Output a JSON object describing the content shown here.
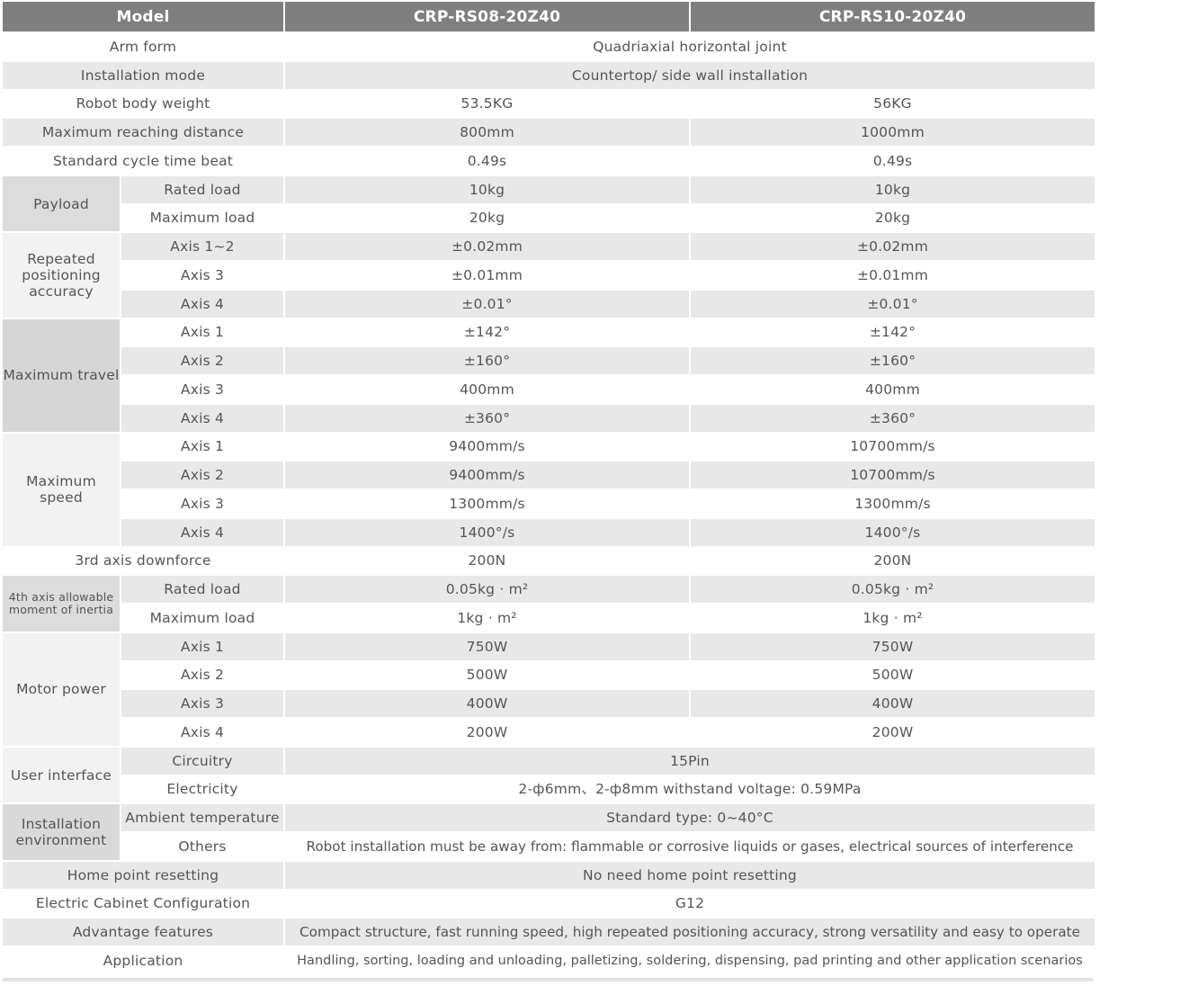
{
  "header": [
    "Model",
    "CRP-RS08-20Z40",
    "CRP-RS10-20Z40"
  ],
  "rows": [
    {
      "label": "Arm form",
      "values": [
        "Quadriaxial horizontal joint"
      ]
    },
    {
      "label": "Installation mode",
      "values": [
        "Countertop/ side wall installation"
      ]
    },
    {
      "label": "Robot body weight",
      "values": [
        "53.5KG",
        "56KG"
      ]
    },
    {
      "label": "Maximum reaching distance",
      "values": [
        "800mm",
        "1000mm"
      ]
    },
    {
      "label": "Standard cycle time beat",
      "values": [
        "0.49s",
        "0.49s"
      ]
    },
    {
      "group": "Payload",
      "items": [
        {
          "label": "Rated load",
          "values": [
            "10kg",
            "10kg"
          ]
        },
        {
          "label": "Maximum load",
          "values": [
            "20kg",
            "20kg"
          ]
        }
      ]
    },
    {
      "group": "Repeated positioning accuracy",
      "items": [
        {
          "label": "Axis 1~2",
          "values": [
            "±0.02mm",
            "±0.02mm"
          ]
        },
        {
          "label": "Axis 3",
          "values": [
            "±0.01mm",
            "±0.01mm"
          ]
        },
        {
          "label": "Axis 4",
          "values": [
            "±0.01°",
            "±0.01°"
          ]
        }
      ]
    },
    {
      "group": "Maximum travel",
      "items": [
        {
          "label": "Axis 1",
          "values": [
            "±142°",
            "±142°"
          ]
        },
        {
          "label": "Axis 2",
          "values": [
            "±160°",
            "±160°"
          ]
        },
        {
          "label": "Axis 3",
          "values": [
            "400mm",
            "400mm"
          ]
        },
        {
          "label": "Axis 4",
          "values": [
            "±360°",
            "±360°"
          ]
        }
      ]
    },
    {
      "group": "Maximum speed",
      "items": [
        {
          "label": "Axis 1",
          "values": [
            "9400mm/s",
            "10700mm/s"
          ]
        },
        {
          "label": "Axis 2",
          "values": [
            "9400mm/s",
            "10700mm/s"
          ]
        },
        {
          "label": "Axis 3",
          "values": [
            "1300mm/s",
            "1300mm/s"
          ]
        },
        {
          "label": "Axis 4",
          "values": [
            "1400°/s",
            "1400°/s"
          ]
        }
      ]
    },
    {
      "label": "3rd axis downforce",
      "values": [
        "200N",
        "200N"
      ]
    },
    {
      "group": "4th axis allowable moment of inertia",
      "items": [
        {
          "label": "Rated load",
          "values": [
            "0.05kg · m²",
            "0.05kg · m²"
          ]
        },
        {
          "label": "Maximum load",
          "values": [
            "1kg · m²",
            "1kg · m²"
          ]
        }
      ]
    },
    {
      "group": "Motor power",
      "items": [
        {
          "label": "Axis 1",
          "values": [
            "750W",
            "750W"
          ]
        },
        {
          "label": "Axis 2",
          "values": [
            "500W",
            "500W"
          ]
        },
        {
          "label": "Axis 3",
          "values": [
            "400W",
            "400W"
          ]
        },
        {
          "label": "Axis 4",
          "values": [
            "200W",
            "200W"
          ]
        }
      ]
    },
    {
      "group": "User interface",
      "items": [
        {
          "label": "Circuitry",
          "values": [
            "15Pin"
          ]
        },
        {
          "label": "Electricity",
          "values": [
            "2-ф6mm、2-ф8mm withstand voltage: 0.59MPa"
          ]
        }
      ]
    },
    {
      "group": "Installation environment",
      "items": [
        {
          "label": "Ambient temperature",
          "values": [
            "Standard type:  0~40°C"
          ]
        },
        {
          "label": "Others",
          "values": [
            "Robot installation must be away from: flammable or corrosive liquids or gases, electrical sources of interference"
          ]
        }
      ]
    },
    {
      "label": "Home point resetting",
      "values": [
        "No need home point resetting"
      ]
    },
    {
      "label": "Electric Cabinet Configuration",
      "values": [
        "G12"
      ]
    },
    {
      "label": "Advantage features",
      "values": [
        "Compact structure, fast running speed, high repeated positioning accuracy, strong versatility and easy to operate"
      ]
    },
    {
      "label": "Application",
      "values": [
        "Handling, sorting, loading and unloading, palletizing, soldering, dispensing, pad printing and other application scenarios"
      ]
    }
  ]
}
